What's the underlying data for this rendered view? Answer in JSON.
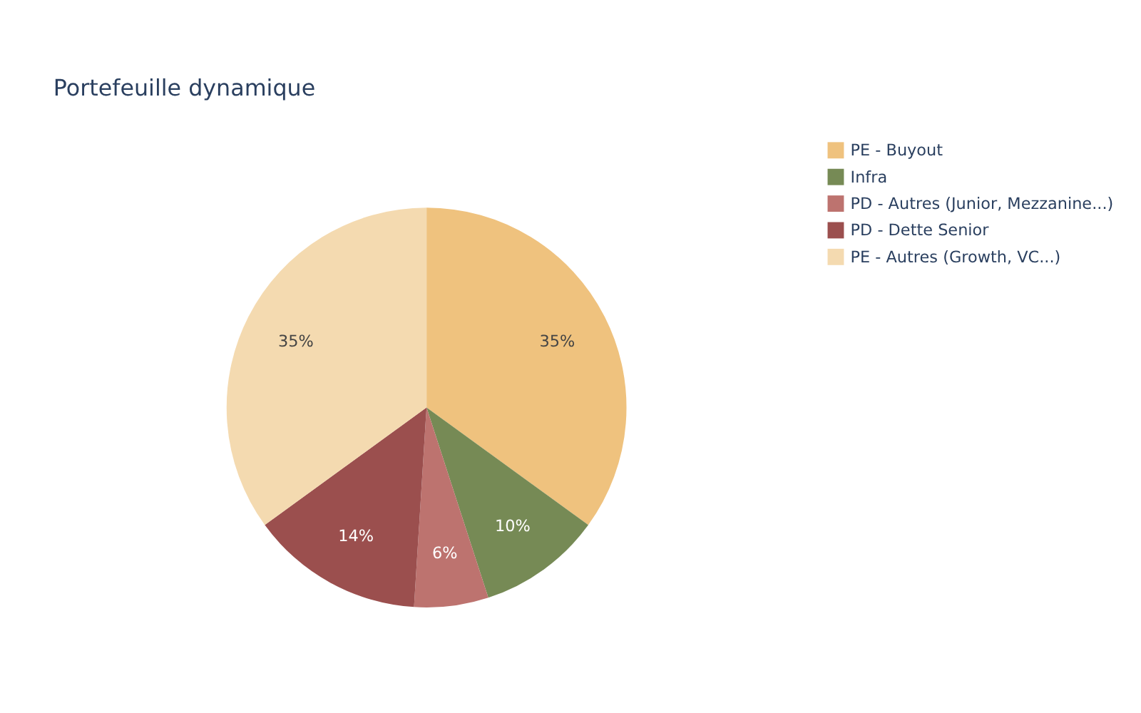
{
  "chart_data": {
    "type": "pie",
    "title": "Portefeuille dynamique",
    "categories": [
      "PE - Buyout",
      "Infra",
      "PD - Autres (Junior, Mezzanine...)",
      "PD - Dette Senior",
      "PE - Autres (Growth, VC...)"
    ],
    "values": [
      35,
      10,
      6,
      14,
      35
    ],
    "colors": [
      "#efc27e",
      "#768a55",
      "#bd736f",
      "#9b4f4e",
      "#f4dab0"
    ],
    "value_labels": [
      "35%",
      "10%",
      "6%",
      "14%",
      "35%"
    ],
    "legend": "top right"
  }
}
